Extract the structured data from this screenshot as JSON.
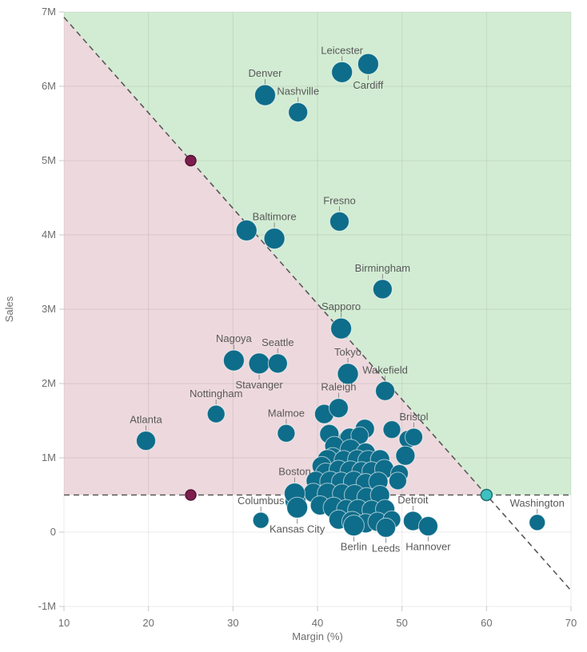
{
  "chart_data": {
    "type": "scatter",
    "title": "",
    "xlabel": "Margin (%)",
    "ylabel": "Sales",
    "xlim": [
      10,
      70
    ],
    "ylim_millions": [
      -1,
      7
    ],
    "x_ticks": [
      10,
      20,
      30,
      40,
      50,
      60,
      70
    ],
    "y_tick_values": [
      -1,
      0,
      1,
      2,
      3,
      4,
      5,
      6,
      7
    ],
    "y_tick_labels": [
      "-1M",
      "0",
      "1M",
      "2M",
      "3M",
      "4M",
      "5M",
      "6M",
      "7M"
    ],
    "grid": true,
    "legend": "none",
    "units": "y values are Sales in millions; x values are Margin (%)",
    "points": [
      {
        "label": "Leicester",
        "x": 42.9,
        "y": 6.19,
        "r": 13,
        "label_pos": "above"
      },
      {
        "label": "Cardiff",
        "x": 46.0,
        "y": 6.3,
        "r": 13,
        "label_pos": "below"
      },
      {
        "label": "Denver",
        "x": 33.8,
        "y": 5.88,
        "r": 13,
        "label_pos": "above"
      },
      {
        "label": "Nashville",
        "x": 37.7,
        "y": 5.65,
        "r": 12,
        "label_pos": "above"
      },
      {
        "label": "Fresno",
        "x": 42.6,
        "y": 4.18,
        "r": 12,
        "label_pos": "above"
      },
      {
        "label": "Baltimore",
        "x": 34.9,
        "y": 3.95,
        "r": 13,
        "label_pos": "above"
      },
      {
        "label": "Birmingham",
        "x": 47.7,
        "y": 3.27,
        "r": 12,
        "label_pos": "above"
      },
      {
        "label": "Sapporo",
        "x": 42.8,
        "y": 2.74,
        "r": 13,
        "label_pos": "above"
      },
      {
        "label": "Nagoya",
        "x": 30.1,
        "y": 2.31,
        "r": 13,
        "label_pos": "above"
      },
      {
        "label": "Stavanger",
        "x": 33.1,
        "y": 2.27,
        "r": 13,
        "label_pos": "below"
      },
      {
        "label": "Seattle",
        "x": 35.3,
        "y": 2.27,
        "r": 12,
        "label_pos": "above"
      },
      {
        "label": "Tokyo",
        "x": 43.6,
        "y": 2.13,
        "r": 13,
        "label_pos": "above"
      },
      {
        "label": "Wakefield",
        "x": 48.0,
        "y": 1.9,
        "r": 12,
        "label_pos": "above"
      },
      {
        "label": "Nottingham",
        "x": 28.0,
        "y": 1.59,
        "r": 11,
        "label_pos": "above"
      },
      {
        "label": "Raleigh",
        "x": 42.5,
        "y": 1.67,
        "r": 12,
        "label_pos": "above"
      },
      {
        "label": "Malmoe",
        "x": 36.3,
        "y": 1.33,
        "r": 11,
        "label_pos": "above"
      },
      {
        "label": "Atlanta",
        "x": 19.7,
        "y": 1.23,
        "r": 12,
        "label_pos": "above"
      },
      {
        "label": "Bristol",
        "x": 51.4,
        "y": 1.28,
        "r": 11,
        "label_pos": "above"
      },
      {
        "label": "Boston",
        "x": 37.3,
        "y": 0.52,
        "r": 13,
        "label_pos": "above"
      },
      {
        "label": "Columbus",
        "x": 33.3,
        "y": 0.16,
        "r": 10,
        "label_pos": "above"
      },
      {
        "label": "Kansas City",
        "x": 37.6,
        "y": 0.33,
        "r": 13,
        "label_pos": "below"
      },
      {
        "label": "Berlin",
        "x": 44.3,
        "y": 0.09,
        "r": 13,
        "label_pos": "below"
      },
      {
        "label": "Leeds",
        "x": 48.1,
        "y": 0.06,
        "r": 12,
        "label_pos": "below"
      },
      {
        "label": "Detroit",
        "x": 51.3,
        "y": 0.15,
        "r": 12,
        "label_pos": "above"
      },
      {
        "label": "Hannover",
        "x": 53.1,
        "y": 0.08,
        "r": 12,
        "label_pos": "below"
      },
      {
        "label": "Washington",
        "x": 66.0,
        "y": 0.13,
        "r": 10,
        "label_pos": "above"
      }
    ],
    "unlabeled_points": [
      [
        31.6,
        4.06,
        13
      ],
      [
        40.8,
        1.59,
        12
      ],
      [
        45.6,
        1.39,
        12
      ],
      [
        48.8,
        1.38,
        11
      ],
      [
        43.6,
        1.25,
        12
      ],
      [
        50.7,
        1.25,
        11
      ],
      [
        41.4,
        1.32,
        12
      ],
      [
        43.8,
        1.27,
        12
      ],
      [
        45.0,
        1.3,
        11
      ],
      [
        42.0,
        1.16,
        12
      ],
      [
        43.9,
        1.11,
        13
      ],
      [
        45.7,
        1.07,
        12
      ],
      [
        41.8,
        1.01,
        12
      ],
      [
        41.2,
        0.97,
        13
      ],
      [
        43.1,
        0.97,
        12
      ],
      [
        44.7,
        0.98,
        12
      ],
      [
        46.0,
        0.96,
        13
      ],
      [
        47.4,
        0.98,
        12
      ],
      [
        50.4,
        1.03,
        12
      ],
      [
        40.5,
        0.89,
        12
      ],
      [
        41.0,
        0.79,
        13
      ],
      [
        42.5,
        0.84,
        12
      ],
      [
        43.9,
        0.82,
        13
      ],
      [
        45.2,
        0.82,
        12
      ],
      [
        46.4,
        0.82,
        12
      ],
      [
        47.9,
        0.85,
        12
      ],
      [
        49.7,
        0.79,
        11
      ],
      [
        39.8,
        0.69,
        12
      ],
      [
        41.5,
        0.68,
        13
      ],
      [
        42.8,
        0.68,
        12
      ],
      [
        44.3,
        0.68,
        13
      ],
      [
        45.7,
        0.66,
        12
      ],
      [
        47.2,
        0.68,
        12
      ],
      [
        49.5,
        0.69,
        11
      ],
      [
        39.5,
        0.53,
        12
      ],
      [
        41.2,
        0.52,
        13
      ],
      [
        42.9,
        0.52,
        12
      ],
      [
        44.4,
        0.5,
        13
      ],
      [
        45.8,
        0.47,
        12
      ],
      [
        47.4,
        0.5,
        12
      ],
      [
        37.4,
        0.42,
        13
      ],
      [
        40.3,
        0.36,
        12
      ],
      [
        41.9,
        0.33,
        13
      ],
      [
        43.4,
        0.31,
        12
      ],
      [
        44.8,
        0.3,
        13
      ],
      [
        46.4,
        0.3,
        12
      ],
      [
        48.0,
        0.31,
        12
      ],
      [
        42.5,
        0.17,
        12
      ],
      [
        44.1,
        0.14,
        13
      ],
      [
        45.7,
        0.12,
        12
      ],
      [
        47.1,
        0.14,
        12
      ],
      [
        48.8,
        0.17,
        11
      ]
    ],
    "reference_lines": {
      "diagonal": {
        "from": [
          10,
          6.9286
        ],
        "to": [
          70,
          -0.7857
        ]
      },
      "horizontal_y": 0.5
    },
    "regions": {
      "green_polygon": [
        [
          10,
          7
        ],
        [
          70,
          7
        ],
        [
          70,
          0.5
        ],
        [
          60,
          0.5
        ],
        [
          10,
          6.9286
        ]
      ],
      "pink_polygon": [
        [
          10,
          6.9286
        ],
        [
          60,
          0.5
        ],
        [
          10,
          0.5
        ]
      ]
    },
    "handles": [
      {
        "x": 25,
        "y": 5,
        "type": "maroon"
      },
      {
        "x": 25,
        "y": 0.5,
        "type": "maroon"
      },
      {
        "x": 60,
        "y": 0.5,
        "type": "cyan"
      }
    ],
    "colors": {
      "bubble": "#0e6d8a",
      "bubble_stroke": "rgba(255,255,255,0.6)",
      "region_green": "#d2ecd3",
      "region_pink": "#edd9dd",
      "dashed_line": "#595959",
      "grid": "rgba(0,0,0,0.08)",
      "axis_text": "#6e6e6e",
      "label_text": "#595959",
      "connector": "#8a8a8a",
      "handle_maroon": "#7c1e4d",
      "handle_maroon_stroke": "#551334",
      "handle_cyan": "#3fc0c0",
      "handle_cyan_stroke": "#20706e",
      "tick_mark": "#c9c9c9"
    }
  }
}
